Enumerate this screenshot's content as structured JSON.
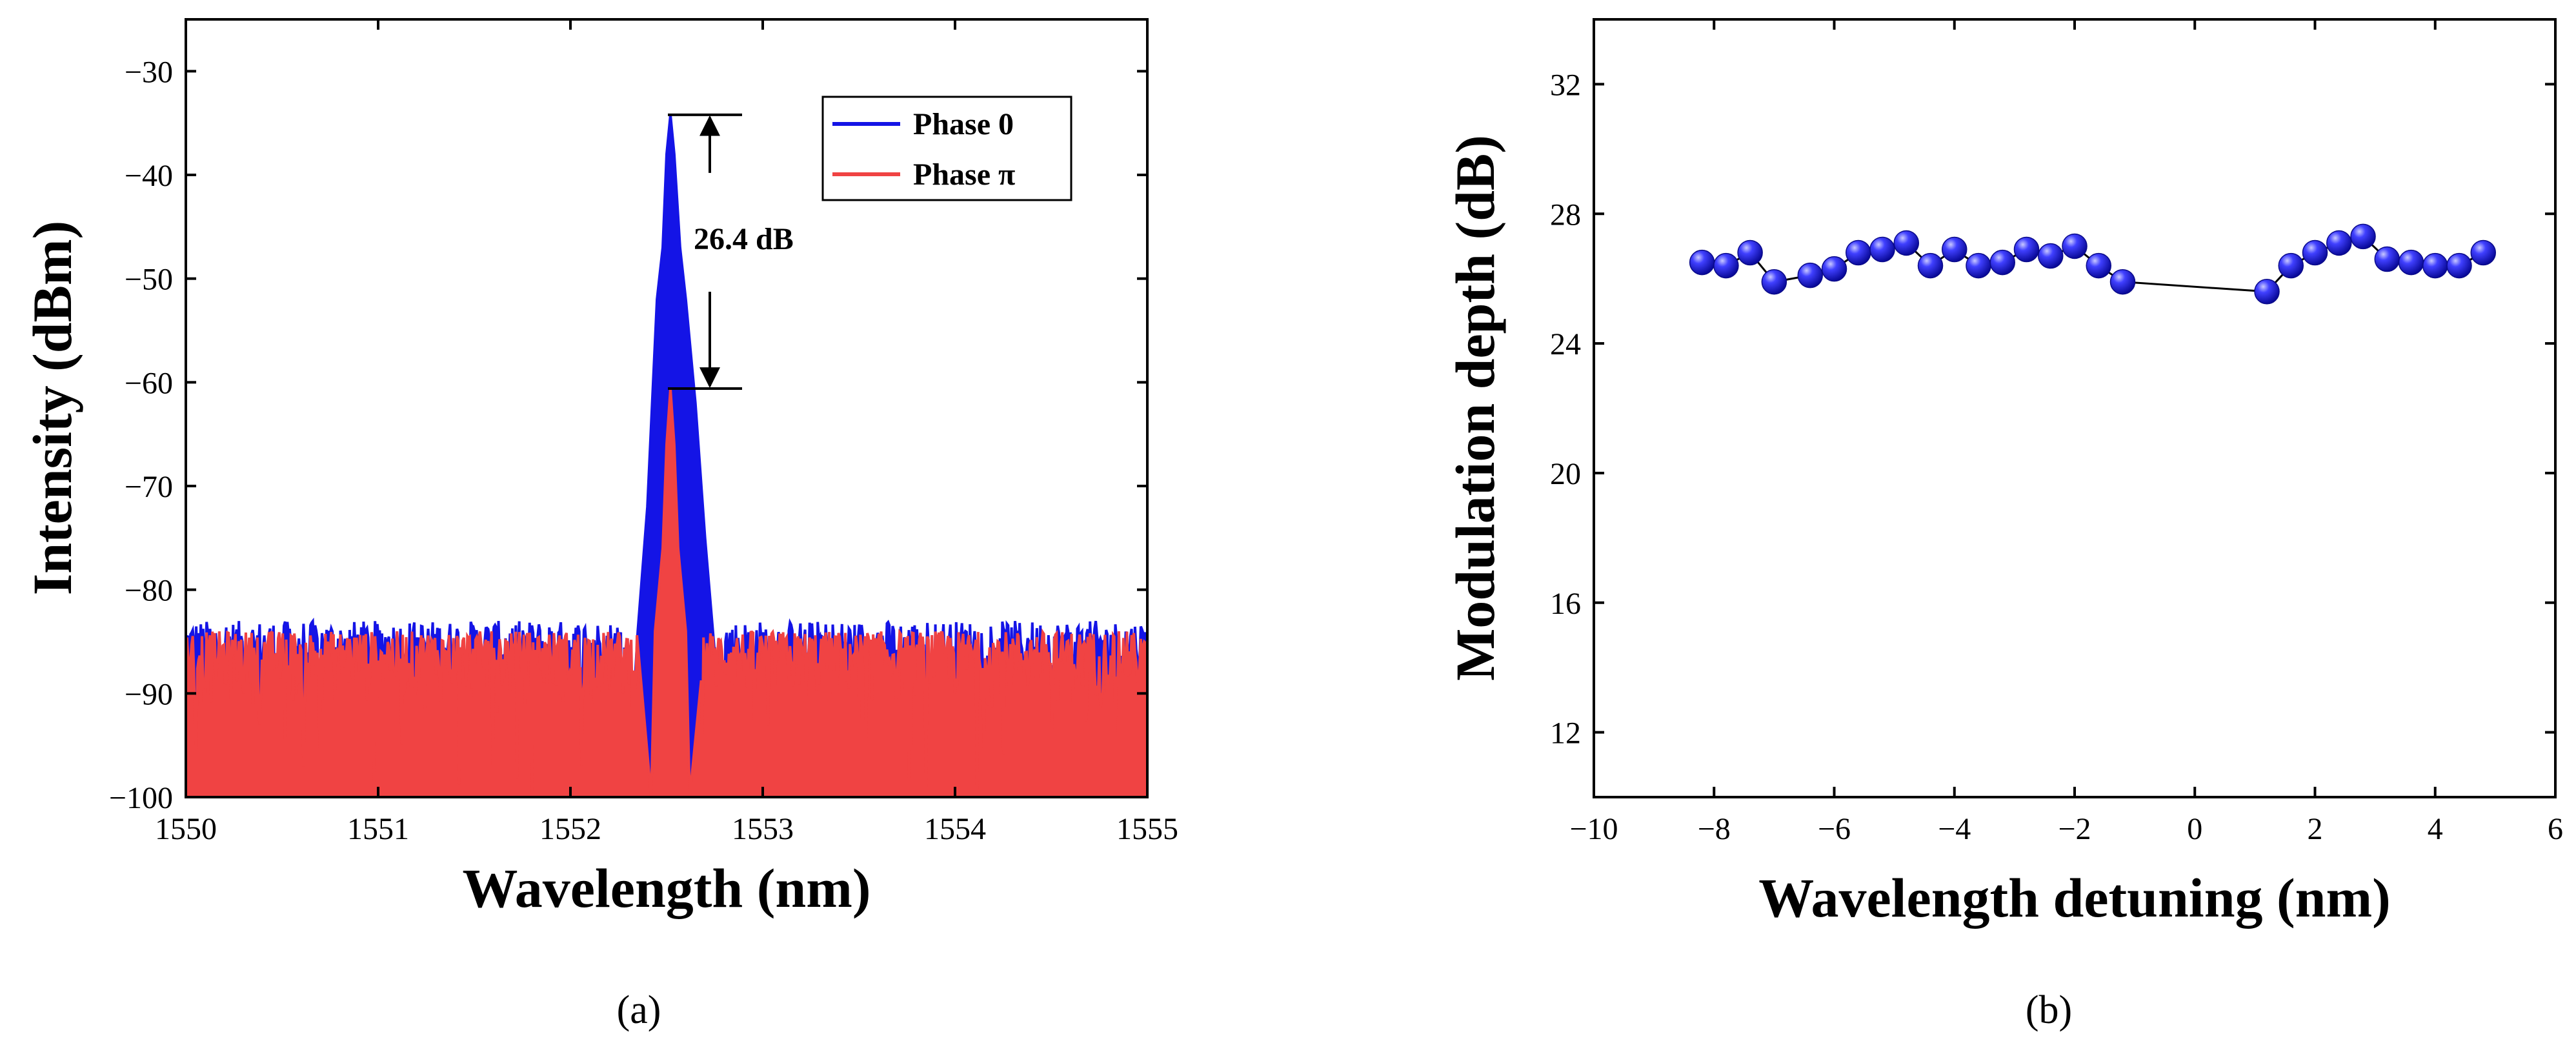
{
  "colors": {
    "phase0": "#1414e6",
    "phasePi": "#f04343",
    "markerFill": "#2a2aee",
    "axis": "#000000"
  },
  "chart_data": [
    {
      "panel": "a",
      "type": "line",
      "caption": "(a)",
      "xlabel": "Wavelength (nm)",
      "ylabel": "Intensity (dBm)",
      "xlim": [
        1550,
        1555
      ],
      "ylim": [
        -100,
        -25
      ],
      "xticks": [
        1550,
        1551,
        1552,
        1553,
        1554,
        1555
      ],
      "yticks": [
        -100,
        -90,
        -80,
        -70,
        -60,
        -50,
        -40,
        -30
      ],
      "xtick_labels": [
        "1550",
        "1551",
        "1552",
        "1553",
        "1554",
        "1555"
      ],
      "ytick_labels": [
        "−100",
        "−90",
        "−80",
        "−70",
        "−60",
        "−50",
        "−40",
        "−30"
      ],
      "legend_position": "top-right",
      "series": [
        {
          "name": "Phase 0",
          "color_key": "phase0",
          "noise_floor_range": [
            -92,
            -83
          ],
          "peak": [
            [
              1552.3,
              -100
            ],
            [
              1552.35,
              -84
            ],
            [
              1552.4,
              -72
            ],
            [
              1552.43,
              -60
            ],
            [
              1552.45,
              -52
            ],
            [
              1552.48,
              -47
            ],
            [
              1552.5,
              -38
            ],
            [
              1552.52,
              -34.2
            ],
            [
              1552.54,
              -38
            ],
            [
              1552.57,
              -47
            ],
            [
              1552.6,
              -52
            ],
            [
              1552.65,
              -62
            ],
            [
              1552.7,
              -75
            ],
            [
              1552.75,
              -86
            ],
            [
              1552.8,
              -100
            ]
          ]
        },
        {
          "name": "Phase π",
          "color_key": "phasePi",
          "noise_floor_range": [
            -92,
            -84
          ],
          "peak": [
            [
              1552.42,
              -100
            ],
            [
              1552.44,
              -84
            ],
            [
              1552.48,
              -76
            ],
            [
              1552.5,
              -66
            ],
            [
              1552.52,
              -60.6
            ],
            [
              1552.54,
              -66
            ],
            [
              1552.56,
              -76
            ],
            [
              1552.6,
              -84
            ],
            [
              1552.62,
              -100
            ]
          ]
        }
      ],
      "annotation": {
        "text": "26.4 dB",
        "top_y": -34.2,
        "bottom_y": -60.6
      }
    },
    {
      "panel": "b",
      "type": "scatter",
      "caption": "(b)",
      "xlabel": "Wavelength detuning (nm)",
      "ylabel": "Modulation depth (dB)",
      "xlim": [
        -10,
        6
      ],
      "ylim": [
        10,
        34
      ],
      "xticks": [
        -10,
        -8,
        -6,
        -4,
        -2,
        0,
        2,
        4,
        6
      ],
      "yticks": [
        12,
        16,
        20,
        24,
        28,
        32
      ],
      "xtick_labels": [
        "−10",
        "−8",
        "−6",
        "−4",
        "−2",
        "0",
        "2",
        "4",
        "6"
      ],
      "ytick_labels": [
        "12",
        "16",
        "20",
        "24",
        "28",
        "32"
      ],
      "x": [
        -8.2,
        -7.8,
        -7.4,
        -7.0,
        -6.4,
        -6.0,
        -5.6,
        -5.2,
        -4.8,
        -4.4,
        -4.0,
        -3.6,
        -3.2,
        -2.8,
        -2.4,
        -2.0,
        -1.6,
        -1.2,
        1.2,
        1.6,
        2.0,
        2.4,
        2.8,
        3.2,
        3.6,
        4.0,
        4.4,
        4.8
      ],
      "y": [
        26.5,
        26.4,
        26.8,
        25.9,
        26.1,
        26.3,
        26.8,
        26.9,
        27.1,
        26.4,
        26.9,
        26.4,
        26.5,
        26.9,
        26.7,
        27.0,
        26.4,
        25.9,
        25.6,
        26.4,
        26.8,
        27.1,
        27.3,
        26.6,
        26.5,
        26.4,
        26.4,
        26.8
      ]
    }
  ]
}
